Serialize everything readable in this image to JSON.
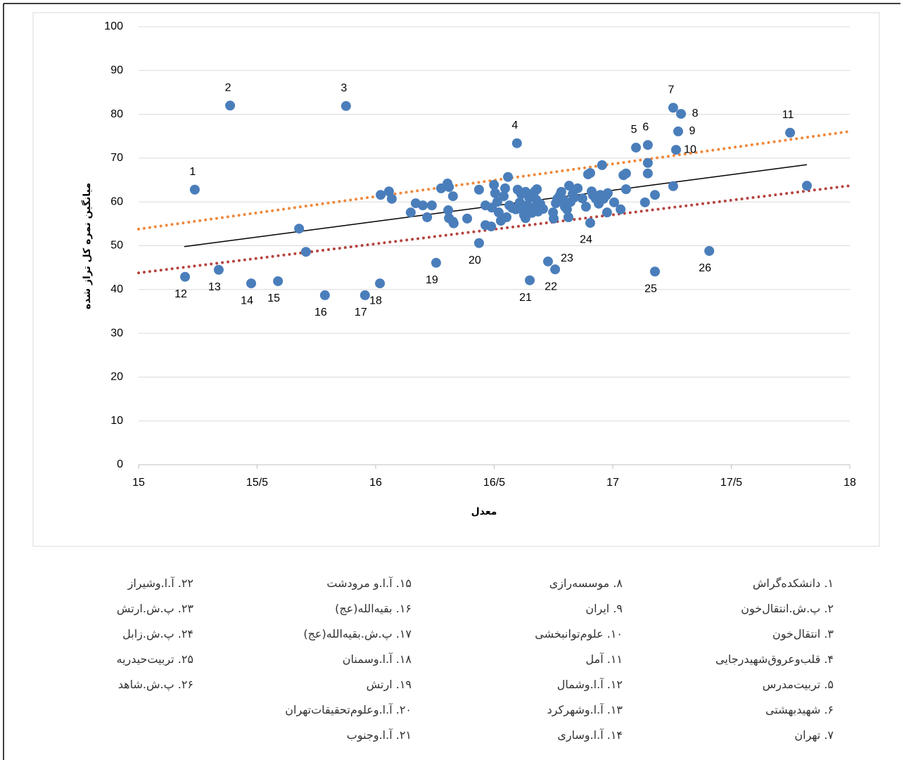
{
  "chart_data": {
    "type": "scatter",
    "x_label": "معدل",
    "y_label": "میانگین نمره کل تراز شده",
    "xlim": [
      15,
      18
    ],
    "ylim": [
      0,
      100
    ],
    "xticks": [
      15,
      {
        "value": 15.5,
        "label": "15/5"
      },
      16,
      {
        "value": 16.5,
        "label": "16/5"
      },
      17,
      {
        "value": 17.5,
        "label": "17/5"
      },
      18
    ],
    "yticks": [
      0,
      10,
      20,
      30,
      40,
      50,
      60,
      70,
      80,
      90,
      100
    ],
    "grid": true,
    "series": [
      {
        "color": "#4a7ebb",
        "x": [
          15.237,
          15.386,
          15.875,
          16.596,
          17.098,
          17.148,
          17.255,
          17.288,
          17.276,
          17.267,
          17.748,
          15.196,
          15.338,
          15.475,
          15.588,
          15.786,
          15.955,
          16.018,
          16.255,
          16.436,
          16.65,
          16.757,
          16.727,
          16.905,
          17.178,
          17.407,
          16.021,
          16.056,
          16.068,
          16.148,
          16.169,
          16.199,
          16.217,
          16.237,
          16.276,
          16.303,
          16.309,
          16.306,
          16.309,
          16.326,
          16.326,
          16.329,
          16.386,
          16.436,
          16.463,
          16.463,
          16.487,
          16.49,
          16.499,
          16.504,
          16.513,
          16.519,
          16.528,
          16.54,
          16.546,
          16.552,
          16.558,
          16.564,
          16.576,
          16.591,
          16.599,
          16.608,
          16.614,
          16.623,
          16.626,
          16.632,
          16.632,
          16.641,
          16.647,
          16.659,
          16.671,
          16.674,
          16.677,
          16.68,
          16.685,
          16.694,
          16.706,
          16.748,
          16.751,
          16.76,
          16.766,
          16.777,
          16.783,
          16.792,
          16.798,
          16.807,
          16.813,
          16.816,
          16.822,
          16.831,
          16.837,
          16.852,
          16.872,
          16.887,
          16.896,
          16.905,
          16.911,
          16.917,
          16.929,
          16.941,
          16.947,
          16.955,
          16.961,
          16.973,
          16.976,
          16.979,
          17.006,
          17.033,
          17.045,
          17.056,
          17.056,
          17.136,
          17.148,
          17.148,
          17.178,
          17.255,
          15.677,
          15.706,
          17.819
        ],
        "y": [
          62.8,
          82.0,
          81.9,
          73.4,
          72.4,
          73.0,
          81.5,
          80.1,
          76.1,
          71.9,
          75.8,
          42.9,
          44.5,
          41.4,
          41.9,
          38.7,
          38.7,
          41.4,
          46.1,
          50.6,
          42.1,
          44.6,
          46.4,
          55.2,
          44.1,
          48.8,
          61.6,
          62.4,
          60.7,
          57.6,
          59.7,
          59.2,
          56.5,
          59.2,
          63.1,
          64.2,
          63.4,
          58.1,
          56.3,
          61.3,
          55.5,
          55.1,
          56.2,
          62.8,
          59.2,
          54.7,
          54.4,
          58.7,
          63.9,
          62.0,
          60.0,
          57.6,
          55.7,
          61.3,
          63.1,
          56.5,
          65.7,
          59.2,
          58.6,
          58.3,
          62.8,
          59.9,
          61.8,
          57.9,
          57.0,
          56.3,
          62.3,
          59.2,
          61.0,
          57.5,
          62.4,
          58.9,
          60.5,
          62.9,
          57.8,
          59.6,
          58.4,
          57.6,
          56.2,
          59.7,
          60.7,
          61.5,
          62.3,
          60.5,
          58.9,
          58.3,
          56.5,
          63.7,
          60.0,
          61.8,
          61.0,
          63.1,
          60.8,
          58.9,
          66.3,
          66.6,
          62.4,
          61.5,
          60.7,
          59.6,
          61.6,
          68.4,
          60.7,
          61.5,
          57.6,
          62.0,
          59.9,
          58.3,
          66.1,
          66.5,
          62.9,
          59.9,
          68.9,
          66.5,
          61.6,
          63.6,
          53.9,
          48.6,
          63.7
        ],
        "labels": [
          "1",
          "2",
          "3",
          "4",
          "5",
          "6",
          "7",
          "8",
          "9",
          "10",
          "11",
          "12",
          "13",
          "14",
          "15",
          "16",
          "17",
          "18",
          "19",
          "20",
          "21",
          "22",
          "23",
          "24",
          "25",
          "26"
        ]
      }
    ],
    "lines": [
      {
        "color": "#000000",
        "style": "solid",
        "x": [
          15.193,
          17.819
        ],
        "y": [
          49.8,
          68.5
        ]
      },
      {
        "color": "#f0883a",
        "style": "dotted",
        "x": [
          15,
          18
        ],
        "y": [
          53.8,
          76.1
        ]
      },
      {
        "color": "#b5443f",
        "style": "dotted",
        "x": [
          15,
          18
        ],
        "y": [
          43.8,
          63.7
        ]
      }
    ]
  },
  "notes": [
    "۱. دانشکده‌گراش",
    "۲. پ.ش.انتقال‌خون",
    "۳. انتقال‌خون",
    "۴. قلب‌وعروق‌شهیدرجایی",
    "۵. تربیت‌مدرس",
    "۶. شهیدبهشتی",
    "۷. تهران",
    "۸. موسسه‌رازی",
    "۹. ایران",
    "۱۰. علوم‌توانبخشی",
    "۱۱. آمل",
    "۱۲. آ.ا.وشمال",
    "۱۳. آ.ا.وشهرکرد",
    "۱۴. آ.ا.وساری",
    "۱۵. آ.ا.و مرودشت",
    "۱۶. بقیه‌الله(عج)",
    "۱۷. پ.ش.بقیه‌الله(عج)",
    "۱۸. آ.ا.وسمنان",
    "۱۹. ارتش",
    "۲۰. آ.ا.وعلوم‌تحقیقات‌تهران",
    "۲۱. آ.ا.وجنوب",
    "۲۲. آ.ا.وشیراز",
    "۲۳. پ.ش.ارتش",
    "۲۴. پ.ش.زابل",
    "۲۵. تربیت‌حیدریه",
    "۲۶. پ.ش.شاهد"
  ]
}
